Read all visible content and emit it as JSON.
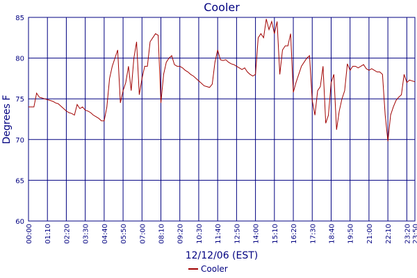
{
  "chart_data": {
    "type": "line",
    "title": "Cooler",
    "xlabel": "12/12/06 (EST)",
    "ylabel": "Degrees F",
    "x": [
      "00:00",
      "00:10",
      "00:20",
      "00:30",
      "00:40",
      "00:50",
      "01:00",
      "01:10",
      "01:20",
      "01:30",
      "01:40",
      "01:50",
      "02:00",
      "02:10",
      "02:20",
      "02:30",
      "02:40",
      "02:50",
      "03:00",
      "03:10",
      "03:20",
      "03:30",
      "03:40",
      "03:50",
      "04:00",
      "04:10",
      "04:20",
      "04:30",
      "04:40",
      "04:50",
      "05:00",
      "05:10",
      "05:20",
      "05:30",
      "05:40",
      "05:50",
      "06:00",
      "06:10",
      "06:20",
      "06:30",
      "06:40",
      "06:50",
      "07:00",
      "07:10",
      "07:20",
      "07:30",
      "07:40",
      "07:50",
      "08:00",
      "08:10",
      "08:20",
      "08:30",
      "08:40",
      "08:50",
      "09:00",
      "09:10",
      "09:20",
      "09:30",
      "09:40",
      "09:50",
      "10:00",
      "10:10",
      "10:20",
      "10:30",
      "10:40",
      "10:50",
      "11:00",
      "11:10",
      "11:20",
      "11:30",
      "11:40",
      "11:50",
      "12:00",
      "12:10",
      "12:20",
      "12:30",
      "12:40",
      "12:50",
      "13:00",
      "13:10",
      "13:20",
      "13:30",
      "13:40",
      "13:50",
      "14:00",
      "14:10",
      "14:20",
      "14:30",
      "14:40",
      "14:50",
      "15:00",
      "15:10",
      "15:20",
      "15:30",
      "15:40",
      "15:50",
      "16:00",
      "16:10",
      "16:20",
      "16:30",
      "16:40",
      "16:50",
      "17:00",
      "17:10",
      "17:20",
      "17:30",
      "17:40",
      "17:50",
      "18:00",
      "18:10",
      "18:20",
      "18:30",
      "18:40",
      "18:50",
      "19:00",
      "19:10",
      "19:20",
      "19:30",
      "19:40",
      "19:50",
      "20:00",
      "20:10",
      "20:20",
      "20:30",
      "20:40",
      "20:50",
      "21:00",
      "21:10",
      "21:20",
      "21:30",
      "21:40",
      "21:50",
      "22:00",
      "22:10",
      "22:20",
      "22:30",
      "22:40",
      "22:50",
      "23:00",
      "23:10",
      "23:20",
      "23:30",
      "23:40",
      "23:50"
    ],
    "series": [
      {
        "name": "Cooler",
        "color": "#a00000",
        "values": [
          74,
          74,
          74,
          75.7,
          75.2,
          75.1,
          75,
          74.9,
          74.8,
          74.7,
          74.5,
          74.4,
          74.1,
          73.8,
          73.5,
          73.3,
          73.2,
          73,
          74.3,
          73.8,
          74,
          73.6,
          73.5,
          73.3,
          73,
          72.8,
          72.6,
          72.3,
          72.3,
          74,
          77.5,
          79,
          80,
          81,
          74.5,
          76,
          77,
          79,
          76,
          80,
          82,
          75.5,
          77.5,
          79,
          79,
          82,
          82.5,
          83,
          82.8,
          74.5,
          78,
          79.5,
          80,
          80.3,
          79.2,
          79,
          79,
          78.8,
          78.5,
          78.3,
          78,
          77.8,
          77.5,
          77.2,
          76.9,
          76.6,
          76.5,
          76.4,
          76.8,
          79.5,
          81,
          79.8,
          79.7,
          79.8,
          79.5,
          79.3,
          79.2,
          79,
          78.8,
          78.6,
          78.8,
          78.3,
          78,
          77.8,
          78,
          82.5,
          83,
          82.5,
          84.8,
          83.5,
          84.5,
          83,
          84.5,
          78,
          81,
          81.5,
          81.5,
          83,
          75.8,
          77,
          78,
          79,
          79.5,
          80,
          80.3,
          74.8,
          73,
          76,
          76.5,
          79,
          72,
          73,
          77,
          78,
          71.2,
          73.5,
          75,
          76,
          79.3,
          78.5,
          79,
          79,
          78.8,
          79,
          79.2,
          78.7,
          78.5,
          78.7,
          78.5,
          78.3,
          78.3,
          78,
          73,
          69.8,
          73,
          74,
          74.8,
          75.2,
          75.5,
          78,
          77,
          77.3,
          77.2,
          77.1
        ]
      }
    ],
    "xticks": [
      "00:00",
      "01:10",
      "02:20",
      "03:30",
      "04:40",
      "05:50",
      "07:00",
      "08:10",
      "09:20",
      "10:30",
      "11:40",
      "12:50",
      "14:00",
      "15:10",
      "16:20",
      "17:30",
      "18:40",
      "19:50",
      "21:00",
      "22:10",
      "23:20",
      "23:50"
    ],
    "ylim": [
      60,
      85
    ],
    "yticks": [
      60,
      65,
      70,
      75,
      80,
      85
    ],
    "grid": true
  }
}
